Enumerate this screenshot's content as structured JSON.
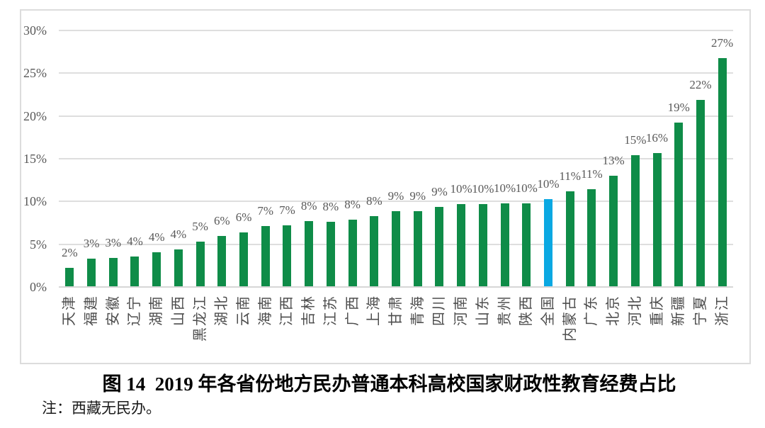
{
  "figure": {
    "caption": "图 14  2019 年各省份地方民办普通本科高校国家财政性教育经费占比",
    "note": "注：西藏无民办。"
  },
  "chart_data": {
    "type": "bar",
    "title": "图 14  2019 年各省份地方民办普通本科高校国家财政性教育经费占比",
    "note": "注：西藏无民办。",
    "categories": [
      "天津",
      "福建",
      "安徽",
      "辽宁",
      "湖南",
      "山西",
      "黑龙江",
      "湖北",
      "云南",
      "海南",
      "江西",
      "吉林",
      "江苏",
      "广西",
      "上海",
      "甘肃",
      "青海",
      "四川",
      "河南",
      "山东",
      "贵州",
      "陕西",
      "全国",
      "内蒙古",
      "广东",
      "北京",
      "河北",
      "重庆",
      "新疆",
      "宁夏",
      "浙江"
    ],
    "values": [
      2.2,
      3.3,
      3.4,
      3.6,
      4.1,
      4.4,
      5.3,
      6.0,
      6.4,
      7.1,
      7.2,
      7.7,
      7.6,
      7.9,
      8.3,
      8.9,
      8.85,
      9.4,
      9.7,
      9.7,
      9.8,
      9.8,
      10.3,
      11.2,
      11.4,
      13.0,
      15.4,
      15.7,
      19.2,
      21.9,
      26.8
    ],
    "bar_value_labels": [
      "2%",
      "3%",
      "3%",
      "4%",
      "4%",
      "4%",
      "5%",
      "6%",
      "6%",
      "7%",
      "7%",
      "8%",
      "8%",
      "8%",
      "8%",
      "9%",
      "9%",
      "9%",
      "10%",
      "10%",
      "10%",
      "10%",
      "10%",
      "11%",
      "11%",
      "13%",
      "15%",
      "16%",
      "19%",
      "22%",
      "27%"
    ],
    "highlight_category": "全国",
    "highlight_index": 22,
    "colors": {
      "bar": "#0f8c48",
      "highlight_bar": "#0aa8e2",
      "gridline": "#dedede",
      "tick_label": "#595959"
    },
    "xlabel": "",
    "ylabel": "",
    "ylim": [
      0,
      30
    ],
    "ytick_labels": [
      "0%",
      "5%",
      "10%",
      "15%",
      "20%",
      "25%",
      "30%"
    ],
    "ytick_values": [
      0,
      5,
      10,
      15,
      20,
      25,
      30
    ],
    "grid": true,
    "legend_position": "none"
  }
}
